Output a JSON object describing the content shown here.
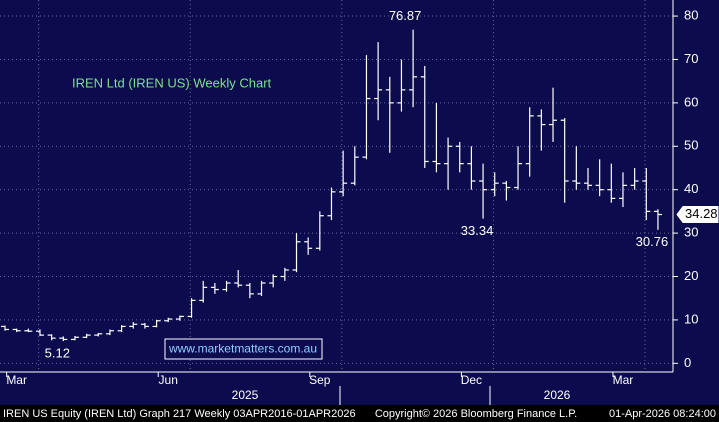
{
  "chart_data": {
    "type": "ohlc",
    "title": "IREN Ltd (IREN US) Weekly Chart",
    "watermark": "www.marketmatters.com.au",
    "footer_left": "IREN US Equity (IREN Ltd) Graph 217 Weekly 03APR2016-01APR2026",
    "footer_center": "Copyright© 2026 Bloomberg Finance L.P.",
    "footer_right": "01-Apr-2026 08:24:00",
    "categories": [
      null,
      "Mar",
      null,
      null,
      null,
      null,
      null,
      null,
      null,
      null,
      null,
      null,
      null,
      null,
      "Jun",
      null,
      null,
      null,
      null,
      null,
      null,
      null,
      null,
      null,
      null,
      null,
      null,
      "Sep",
      null,
      null,
      null,
      null,
      null,
      null,
      null,
      null,
      null,
      null,
      null,
      null,
      "Dec",
      null,
      null,
      null,
      null,
      null,
      null,
      null,
      null,
      null,
      null,
      null,
      null,
      "Mar",
      null,
      null,
      null
    ],
    "years": [
      "2025",
      "2026"
    ],
    "color": "#ffffff",
    "open": [
      8.5,
      7.8,
      7.5,
      7.4,
      6.5,
      5.8,
      5.5,
      6.0,
      6.5,
      6.8,
      7.5,
      8.5,
      9,
      8.5,
      9.8,
      10.2,
      10.8,
      14.5,
      17.5,
      17,
      18.5,
      18,
      16,
      18.5,
      20,
      21.5,
      28,
      26.5,
      34,
      39.5,
      41.5,
      47.5,
      61,
      63,
      60,
      63,
      66,
      46.5,
      46,
      50,
      46,
      42,
      40,
      41.5,
      40.5,
      46,
      57,
      55,
      56,
      42,
      41.5,
      41,
      40,
      38,
      41,
      42,
      35
    ],
    "high": [
      8.7,
      8,
      8,
      7.8,
      6.7,
      6.2,
      6.3,
      6.8,
      7,
      7.8,
      8.8,
      9.5,
      9.3,
      10,
      10.5,
      11,
      15,
      19,
      18.5,
      19,
      21.5,
      18.5,
      19,
      20.5,
      22,
      30,
      29,
      35,
      40.5,
      49,
      50,
      71,
      74,
      66,
      70,
      76.87,
      68.5,
      60,
      52,
      51,
      50,
      46,
      44,
      42,
      50,
      59,
      58.5,
      63.5,
      56.5,
      50,
      45,
      47,
      46,
      44,
      45,
      45,
      35.5
    ],
    "low": [
      7.5,
      7.2,
      7.2,
      6.3,
      5.3,
      5.12,
      5.3,
      5.8,
      6.2,
      6.5,
      7.2,
      8,
      8,
      8.3,
      9.5,
      9.8,
      10.5,
      14,
      16,
      16.5,
      17.5,
      15,
      15.5,
      17.5,
      19,
      21,
      25,
      26,
      33,
      38.5,
      41,
      47,
      56,
      48.5,
      58,
      59,
      45,
      44,
      40,
      44,
      40,
      33.34,
      38.5,
      37.5,
      40,
      43,
      49,
      51,
      37,
      40,
      40,
      38.5,
      37,
      36,
      40,
      33,
      30.76
    ],
    "close": [
      7.8,
      7.5,
      7.4,
      6.5,
      5.8,
      5.5,
      6.0,
      6.5,
      6.8,
      7.5,
      8.5,
      9,
      8.5,
      9.8,
      10.2,
      10.8,
      14.5,
      17.5,
      17,
      18.5,
      18,
      16,
      18.5,
      20,
      21.5,
      28,
      26.5,
      34,
      39.5,
      41.5,
      47.5,
      61,
      63,
      60,
      63,
      66,
      46.5,
      46,
      50,
      46,
      42,
      40,
      41.5,
      40.5,
      46,
      57,
      55,
      56,
      42,
      41.5,
      41,
      40,
      38,
      41,
      42,
      35,
      34.28
    ],
    "high_labels": [
      null,
      null,
      null,
      null,
      null,
      null,
      null,
      null,
      null,
      null,
      null,
      null,
      null,
      null,
      null,
      null,
      null,
      null,
      null,
      null,
      null,
      null,
      null,
      null,
      null,
      null,
      null,
      null,
      null,
      null,
      null,
      null,
      null,
      null,
      null,
      "76.87",
      null,
      null,
      null,
      null,
      null,
      null,
      null,
      null,
      null,
      null,
      null,
      null,
      null,
      null,
      null,
      null,
      null,
      null,
      null,
      null,
      null
    ],
    "low_labels": [
      null,
      null,
      null,
      null,
      null,
      "5.12",
      null,
      null,
      null,
      null,
      null,
      null,
      null,
      null,
      null,
      null,
      null,
      null,
      null,
      null,
      null,
      null,
      null,
      null,
      null,
      null,
      null,
      null,
      null,
      null,
      null,
      null,
      null,
      null,
      null,
      null,
      null,
      null,
      null,
      null,
      null,
      "33.34",
      null,
      null,
      null,
      null,
      null,
      null,
      null,
      null,
      null,
      null,
      null,
      null,
      null,
      null,
      "30.76"
    ],
    "last_label": "34.28",
    "ylim": [
      -2,
      83.7
    ],
    "yticks": [
      0,
      10,
      20,
      30,
      40,
      50,
      60,
      70,
      80
    ],
    "grid": true
  }
}
